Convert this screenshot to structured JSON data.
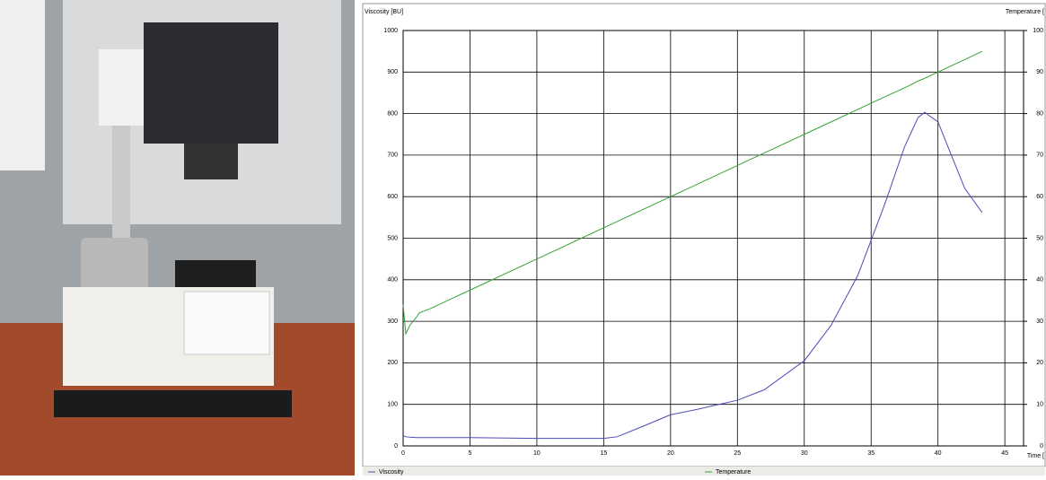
{
  "chart_data": {
    "type": "line",
    "y_label": "Viscosity [BU]",
    "y2_label": "Temperature [",
    "x_label": "Time [",
    "x": [
      0,
      0.2,
      0.5,
      1,
      1.2,
      2,
      5,
      10,
      15,
      16,
      18,
      20,
      22,
      25,
      27,
      30,
      32,
      34,
      36,
      37.5,
      38.5,
      39,
      40,
      41,
      42,
      43.3
    ],
    "series": [
      {
        "name": "Viscosity",
        "color": "#4b4bb8",
        "values": [
          25,
          22,
          21,
          20,
          20,
          20,
          20,
          18,
          18,
          22,
          48,
          75,
          88,
          110,
          135,
          205,
          290,
          410,
          580,
          720,
          790,
          803,
          780,
          700,
          620,
          562
        ]
      },
      {
        "name": "Temperature",
        "color": "#33a533",
        "axis": "y2",
        "values": [
          34,
          27,
          29,
          31,
          32,
          33,
          37.5,
          45,
          52.5,
          54,
          57,
          60,
          63,
          67.5,
          70.5,
          75,
          78,
          81,
          84,
          86.2,
          87.8,
          88.5,
          90,
          91.5,
          93,
          95
        ]
      }
    ],
    "xlim": [
      0,
      46.4
    ],
    "xticks": [
      0,
      5,
      10,
      15,
      20,
      25,
      30,
      35,
      40,
      45
    ],
    "ylim": [
      0,
      1000
    ],
    "yticks": [
      0,
      100,
      200,
      300,
      400,
      500,
      600,
      700,
      800,
      900,
      1000
    ],
    "y2lim": [
      0,
      100
    ],
    "y2ticks": [
      0,
      10,
      20,
      30,
      40,
      50,
      60,
      70,
      80,
      90,
      100
    ],
    "grid": true
  }
}
